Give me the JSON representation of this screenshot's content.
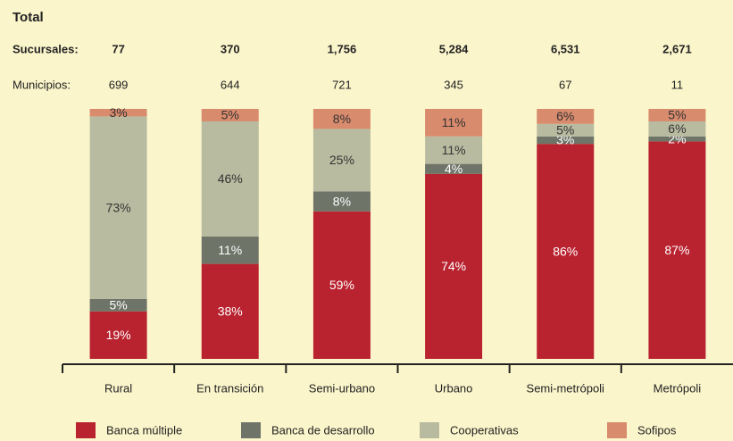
{
  "chart_data": {
    "type": "stacked_bar",
    "title": "Total",
    "branches": {
      "label": "Sucursales:",
      "values": [
        "77",
        "370",
        "1,756",
        "5,284",
        "6,531",
        "2,671"
      ]
    },
    "municipalities": {
      "label": "Municipios:",
      "values": [
        699,
        644,
        721,
        345,
        67,
        11
      ]
    },
    "categories": [
      "Rural",
      "En transición",
      "Semi-urbano",
      "Urbano",
      "Semi-metrópoli",
      "Metrópoli"
    ],
    "ylim": [
      0,
      100
    ],
    "series": [
      {
        "name": "Banca múltiple",
        "color": "#b9222f",
        "values": [
          19,
          38,
          59,
          74,
          86,
          87
        ],
        "value_labels": [
          "19%",
          "38%",
          "59%",
          "74%",
          "86%",
          "87%"
        ]
      },
      {
        "name": "Banca de desarrollo",
        "color": "#6e7468",
        "values": [
          5,
          11,
          8,
          4,
          3,
          2
        ],
        "value_labels": [
          "5%",
          "11%",
          "8%",
          "4%",
          "3%",
          "2%"
        ]
      },
      {
        "name": "Cooperativas",
        "color": "#b8bb9f",
        "values": [
          73,
          46,
          25,
          11,
          5,
          6
        ],
        "value_labels": [
          "73%",
          "46%",
          "25%",
          "11%",
          "5%",
          "6%"
        ]
      },
      {
        "name": "Sofipos",
        "color": "#d98b6d",
        "values": [
          3,
          5,
          8,
          11,
          6,
          5
        ],
        "value_labels": [
          "3%",
          "5%",
          "8%",
          "11%",
          "6%",
          "5%"
        ]
      }
    ]
  }
}
